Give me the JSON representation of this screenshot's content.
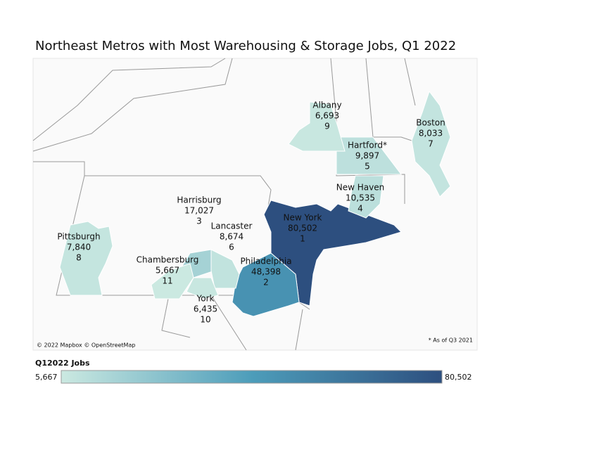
{
  "title": "Northeast Metros with Most Warehousing & Storage Jobs, Q1 2022",
  "regions": [
    {
      "name": "New York",
      "value": 80502,
      "value_label": "80,502",
      "rank": 1
    },
    {
      "name": "Philadelphia",
      "value": 48398,
      "value_label": "48,398",
      "rank": 2
    },
    {
      "name": "Harrisburg",
      "value": 17027,
      "value_label": "17,027",
      "rank": 3
    },
    {
      "name": "New Haven",
      "value": 10535,
      "value_label": "10,535",
      "rank": 4
    },
    {
      "name": "Hartford*",
      "value": 9897,
      "value_label": "9,897",
      "rank": 5
    },
    {
      "name": "Lancaster",
      "value": 8674,
      "value_label": "8,674",
      "rank": 6
    },
    {
      "name": "Boston",
      "value": 8033,
      "value_label": "8,033",
      "rank": 7
    },
    {
      "name": "Pittsburgh",
      "value": 7840,
      "value_label": "7,840",
      "rank": 8
    },
    {
      "name": "Albany",
      "value": 6693,
      "value_label": "6,693",
      "rank": 9
    },
    {
      "name": "York",
      "value": 6435,
      "value_label": "6,435",
      "rank": 10
    },
    {
      "name": "Chambersburg",
      "value": 5667,
      "value_label": "5,667",
      "rank": 11
    }
  ],
  "attribution": "© 2022 Mapbox © OpenStreetMap",
  "footnote": "* As of Q3 2021",
  "legend": {
    "title": "Q12022 Jobs",
    "min": 5667,
    "min_label": "5,667",
    "max": 80502,
    "max_label": "80,502",
    "colors": [
      "#cbe9e1",
      "#4d9dba",
      "#2d4f7f"
    ]
  }
}
